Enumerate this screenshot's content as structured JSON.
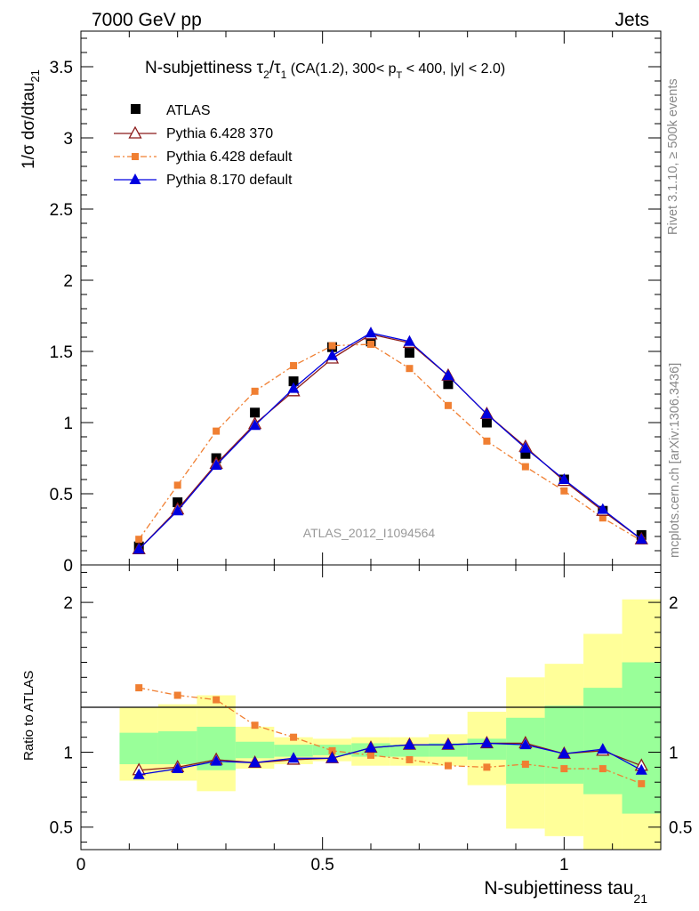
{
  "header": {
    "left": "7000 GeV pp",
    "right": "Jets",
    "analysis_id": "ATLAS_2012_I1094564",
    "side_rivet": "Rivet 3.1.10, ≥ 500k events",
    "side_mcplots": "mcplots.cern.ch [arXiv:1306.3436]"
  },
  "chart_data": [
    {
      "type": "scatter",
      "panel": "main",
      "title": {
        "main": "N-subjettiness τ",
        "sub2": "2",
        "slash": "/τ",
        "sub1": "1",
        "rest": " (CA(1.2), 300< p",
        "subT": "T",
        "tail": " < 400, |y| < 2.0)"
      },
      "ylabel": {
        "main": "1/σ dσ/dtau",
        "sub": "21"
      },
      "xlim": [
        0,
        1.2
      ],
      "ylim": [
        0,
        3.75
      ],
      "y_ticks": [
        {
          "v": 0,
          "label": "0"
        },
        {
          "v": 0.5,
          "label": "0.5"
        },
        {
          "v": 1,
          "label": "1"
        },
        {
          "v": 1.5,
          "label": "1.5"
        },
        {
          "v": 2,
          "label": "2"
        },
        {
          "v": 2.5,
          "label": "2.5"
        },
        {
          "v": 3,
          "label": "3"
        },
        {
          "v": 3.5,
          "label": "3.5"
        }
      ],
      "legend_position": "top-left",
      "x": [
        0.12,
        0.2,
        0.28,
        0.36,
        0.44,
        0.52,
        0.6,
        0.68,
        0.76,
        0.84,
        0.92,
        1.0,
        1.08,
        1.16
      ],
      "series": [
        {
          "name": "ATLAS",
          "color": "#000000",
          "marker": "square",
          "values": [
            0.13,
            0.44,
            0.75,
            1.07,
            1.29,
            1.53,
            1.57,
            1.49,
            1.27,
            1.0,
            0.78,
            0.6,
            0.38,
            0.21
          ]
        },
        {
          "name": "Pythia 6.428 370",
          "color": "#8b1a1a",
          "marker": "open-triangle",
          "line": "solid",
          "values": [
            0.11,
            0.39,
            0.71,
            0.99,
            1.22,
            1.45,
            1.62,
            1.56,
            1.33,
            1.06,
            0.83,
            0.59,
            0.38,
            0.18
          ]
        },
        {
          "name": "Pythia 6.428 default",
          "color": "#f07f32",
          "marker": "small-square",
          "line": "dashdot",
          "values": [
            0.18,
            0.56,
            0.94,
            1.22,
            1.4,
            1.54,
            1.55,
            1.38,
            1.12,
            0.87,
            0.69,
            0.52,
            0.33,
            0.17
          ]
        },
        {
          "name": "Pythia 8.170 default",
          "color": "#0000e0",
          "marker": "filled-triangle",
          "line": "solid",
          "values": [
            0.11,
            0.38,
            0.7,
            0.98,
            1.24,
            1.47,
            1.63,
            1.57,
            1.33,
            1.06,
            0.82,
            0.6,
            0.39,
            0.18
          ]
        }
      ]
    },
    {
      "type": "line",
      "panel": "ratio",
      "ylabel": "Ratio to ATLAS",
      "xlabel": {
        "main": "N-subjettiness tau",
        "sub": "21"
      },
      "xlim": [
        0,
        1.2
      ],
      "ylim": [
        0.35,
        2.25
      ],
      "x_ticks": [
        {
          "v": 0,
          "label": "0"
        },
        {
          "v": 0.5,
          "label": "0.5"
        },
        {
          "v": 1,
          "label": "1"
        }
      ],
      "y_ticks": [
        {
          "v": 0.5,
          "label": "0.5"
        },
        {
          "v": 1,
          "label": "1"
        },
        {
          "v": 2,
          "label": "2"
        }
      ],
      "bin_edges": [
        0.08,
        0.16,
        0.24,
        0.32,
        0.4,
        0.48,
        0.56,
        0.64,
        0.72,
        0.8,
        0.88,
        0.96,
        1.04,
        1.12,
        1.2
      ],
      "band_yellow": [
        [
          0.81,
          1.3
        ],
        [
          0.81,
          1.32
        ],
        [
          0.74,
          1.38
        ],
        [
          0.89,
          1.17
        ],
        [
          0.92,
          1.1
        ],
        [
          0.94,
          1.09
        ],
        [
          0.91,
          1.1
        ],
        [
          0.91,
          1.1
        ],
        [
          0.91,
          1.12
        ],
        [
          0.78,
          1.27
        ],
        [
          0.49,
          1.5
        ],
        [
          0.44,
          1.59
        ],
        [
          0.33,
          1.79
        ],
        [
          0.33,
          2.02
        ]
      ],
      "band_green": [
        [
          0.92,
          1.13
        ],
        [
          0.92,
          1.14
        ],
        [
          0.88,
          1.17
        ],
        [
          0.96,
          1.07
        ],
        [
          0.97,
          1.05
        ],
        [
          0.98,
          1.05
        ],
        [
          0.97,
          1.06
        ],
        [
          0.97,
          1.05
        ],
        [
          0.97,
          1.06
        ],
        [
          0.95,
          1.09
        ],
        [
          0.79,
          1.23
        ],
        [
          0.79,
          1.31
        ],
        [
          0.72,
          1.43
        ],
        [
          0.59,
          1.6
        ]
      ],
      "band_colors": {
        "yellow": "#ffff99",
        "green": "#99ff99"
      },
      "series": [
        {
          "name": "Pythia 6.428 370",
          "color": "#8b1a1a",
          "marker": "open-triangle",
          "line": "solid",
          "values": [
            0.88,
            0.9,
            0.95,
            0.93,
            0.95,
            0.96,
            1.03,
            1.05,
            1.05,
            1.06,
            1.06,
            0.99,
            1.01,
            0.91
          ]
        },
        {
          "name": "Pythia 6.428 default",
          "color": "#f07f32",
          "marker": "small-square",
          "line": "dashdot",
          "values": [
            1.43,
            1.38,
            1.35,
            1.18,
            1.1,
            1.01,
            0.98,
            0.95,
            0.91,
            0.9,
            0.92,
            0.89,
            0.89,
            0.79
          ]
        },
        {
          "name": "Pythia 8.170 default",
          "color": "#0000e0",
          "marker": "filled-triangle",
          "line": "solid",
          "values": [
            0.85,
            0.89,
            0.94,
            0.93,
            0.96,
            0.96,
            1.03,
            1.05,
            1.05,
            1.06,
            1.05,
            0.99,
            1.02,
            0.88
          ]
        }
      ]
    }
  ]
}
